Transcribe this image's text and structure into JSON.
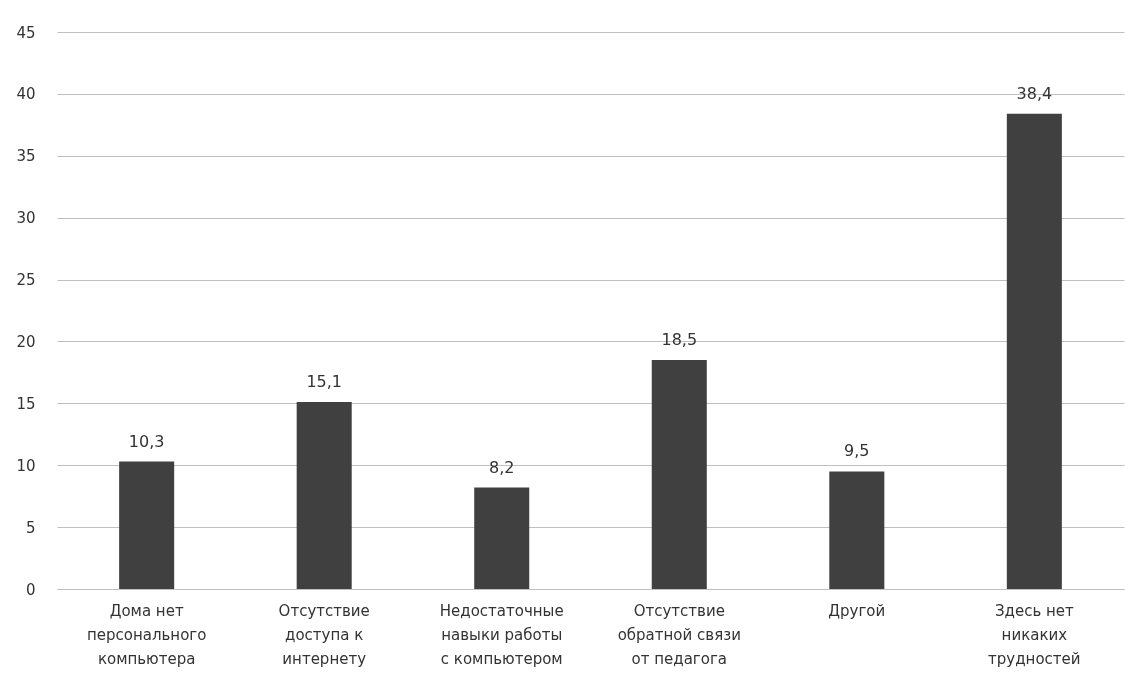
{
  "chart_data": {
    "type": "bar",
    "categories": [
      "Дома нет персонального компьютера",
      "Отсутствие доступа к интернету",
      "Недостаточные навыки работы с компьютером",
      "Отсутствие обратной связи от педагога",
      "Другой",
      "Здесь нет никаких трудностей"
    ],
    "values": [
      10.3,
      15.1,
      8.2,
      18.5,
      9.5,
      38.4
    ],
    "value_labels": [
      "10,3",
      "15,1",
      "8,2",
      "18,5",
      "9,5",
      "38,4"
    ],
    "color": "#404040",
    "ylim": [
      0,
      45
    ],
    "yticks": [
      0,
      5,
      10,
      15,
      20,
      25,
      30,
      35,
      40,
      45
    ],
    "grid": "y"
  }
}
